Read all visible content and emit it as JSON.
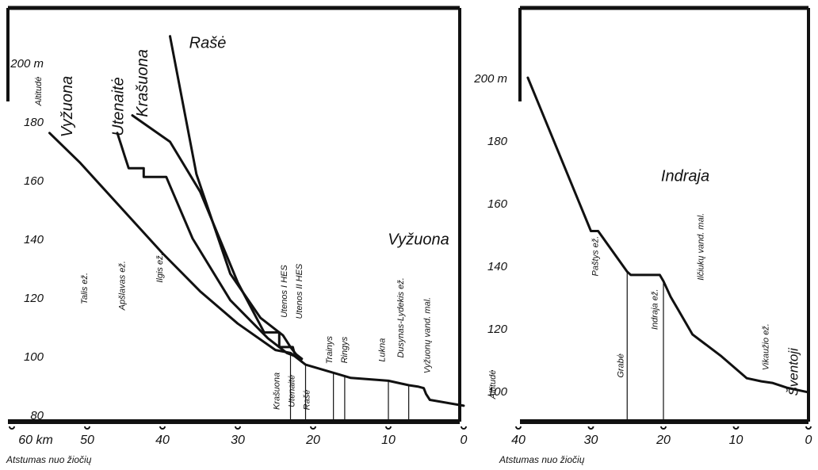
{
  "chart_data": [
    {
      "type": "line",
      "title": "",
      "xlabel": "Atstumas nuo žiočių",
      "ylabel": "Altitudė",
      "y_unit": "m",
      "x_unit": "km",
      "x_reversed": true,
      "xlim": [
        60,
        0
      ],
      "ylim": [
        80,
        210
      ],
      "x_ticks": [
        60,
        50,
        40,
        30,
        20,
        10,
        0
      ],
      "x_tick_labels": [
        "60 km",
        "50",
        "40",
        "30",
        "20",
        "10",
        "0"
      ],
      "y_ticks": [
        80,
        100,
        120,
        140,
        160,
        180,
        200
      ],
      "y_tick_labels": [
        "80",
        "100",
        "120",
        "140",
        "160",
        "180",
        "200 m"
      ],
      "grid": false,
      "series": [
        {
          "name": "Vyžuona",
          "x": [
            55,
            51,
            40,
            35,
            30,
            25,
            23,
            22,
            21,
            17,
            15,
            10,
            7.3,
            6,
            5.3,
            5,
            4.5,
            0
          ],
          "y": [
            176,
            166,
            135,
            122,
            111,
            102,
            101,
            99,
            97,
            94,
            92.5,
            91.5,
            90,
            89.5,
            89,
            87,
            85,
            83
          ]
        },
        {
          "name": "Utenaitė",
          "x": [
            46,
            45.5,
            45,
            44.5,
            42.5,
            42.5,
            39.5,
            39,
            36,
            31,
            26,
            23.5,
            22.5
          ],
          "y": [
            176,
            172,
            168,
            164,
            164,
            161,
            161,
            158,
            140,
            119,
            106,
            101,
            100
          ]
        },
        {
          "name": "Krašuona",
          "x": [
            44,
            39,
            35,
            30,
            26.5,
            24.5,
            24.5,
            22.7,
            22.5,
            21.5
          ],
          "y": [
            182,
            173,
            156,
            125,
            108,
            108,
            103,
            103,
            101,
            99
          ]
        },
        {
          "name": "Rašė",
          "x": [
            39,
            35.5,
            31,
            27,
            25,
            24,
            23,
            21.5
          ],
          "y": [
            209,
            162,
            128,
            113,
            109,
            107,
            103,
            98
          ]
        }
      ],
      "annotations": [
        {
          "text": "Vyžuona",
          "x": 52,
          "y": 185
        },
        {
          "text": "Utenaitė",
          "x": 45.2,
          "y": 185
        },
        {
          "text": "Krašuona",
          "x": 42,
          "y": 193
        },
        {
          "text": "Rašė",
          "x": 34,
          "y": 205
        },
        {
          "text": "Vyžuona",
          "x": 6,
          "y": 138
        },
        {
          "text": "Talis ež.",
          "x": 50,
          "y": 123
        },
        {
          "text": "Apšlavas ež.",
          "x": 45,
          "y": 124
        },
        {
          "text": "Ilgis ež.",
          "x": 40,
          "y": 130
        },
        {
          "text": "Utenos I HES",
          "x": 23.5,
          "y": 122
        },
        {
          "text": "Utenos II HES",
          "x": 21.5,
          "y": 122
        },
        {
          "text": "Trainys",
          "x": 17.5,
          "y": 102
        },
        {
          "text": "Ringys",
          "x": 15.5,
          "y": 102
        },
        {
          "text": "Lukna",
          "x": 10.5,
          "y": 102
        },
        {
          "text": "Dusynas-Lydekis ež.",
          "x": 8,
          "y": 113
        },
        {
          "text": "Vyžuonų vand. mal.",
          "x": 4.5,
          "y": 107
        },
        {
          "text": "Krašuona",
          "x": 24.5,
          "y": 88
        },
        {
          "text": "Utenaitė",
          "x": 22.5,
          "y": 88
        },
        {
          "text": "Rašė",
          "x": 20.5,
          "y": 85
        }
      ]
    },
    {
      "type": "line",
      "title": "",
      "xlabel": "Atstumas nuo žiočių",
      "ylabel": "Altitudė",
      "y_unit": "m",
      "x_reversed": true,
      "xlim": [
        40,
        0
      ],
      "ylim": [
        96,
        210
      ],
      "x_ticks": [
        40,
        30,
        20,
        10,
        0
      ],
      "x_tick_labels": [
        "40",
        "30",
        "20",
        "10",
        "0"
      ],
      "y_ticks": [
        100,
        120,
        140,
        160,
        180,
        200
      ],
      "y_tick_labels": [
        "100",
        "120",
        "140",
        "160",
        "180",
        "200 m"
      ],
      "grid": false,
      "series": [
        {
          "name": "Indraja",
          "x": [
            38.7,
            30,
            29,
            25,
            24.5,
            20.5,
            20,
            19,
            18,
            16,
            12,
            8.5,
            6.5,
            5,
            3,
            0
          ],
          "y": [
            200,
            151,
            151,
            138,
            137,
            137,
            135,
            130,
            126,
            118,
            111,
            104,
            103,
            102.5,
            101,
            99.5
          ]
        }
      ],
      "annotations": [
        {
          "text": "Indraja",
          "x": 17,
          "y": 167
        },
        {
          "text": "Paštys ež.",
          "x": 29,
          "y": 143
        },
        {
          "text": "Grabė",
          "x": 25.5,
          "y": 108
        },
        {
          "text": "Indraja ež.",
          "x": 20.8,
          "y": 126
        },
        {
          "text": "Ilčiukų vand. mal.",
          "x": 14.5,
          "y": 146
        },
        {
          "text": "Vikaužio ež.",
          "x": 5.5,
          "y": 114
        },
        {
          "text": "Šventoji",
          "x": 1.5,
          "y": 106
        }
      ]
    }
  ]
}
